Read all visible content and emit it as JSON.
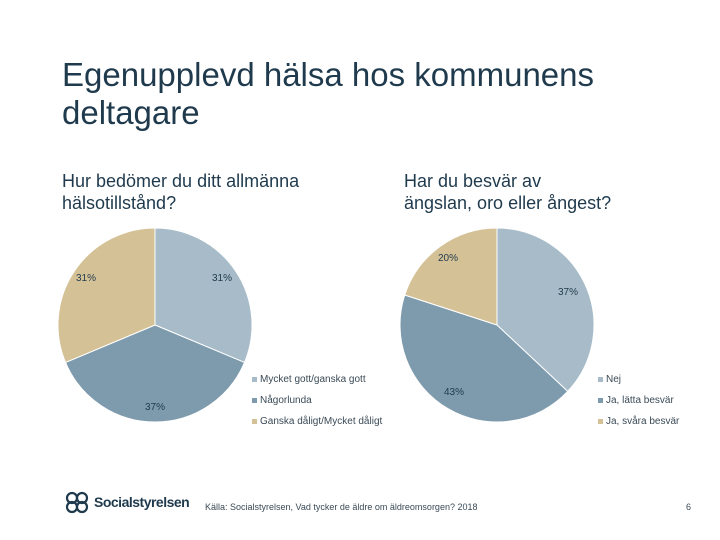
{
  "slide": {
    "title_lines": [
      "Egenupplevd hälsa hos kommunens",
      "deltagare"
    ],
    "source": "Källa: Socialstyrelsen, Vad tycker de äldre om äldreomsorgen? 2018",
    "page_number": "6",
    "logo_text": "Socialstyrelsen"
  },
  "chart_data": [
    {
      "type": "pie",
      "title_lines": [
        "Hur bedömer du ditt allmänna",
        "hälsotillstånd?"
      ],
      "categories": [
        "Mycket gott/ganska gott",
        "Någorlunda",
        "Ganska dåligt/Mycket dåligt"
      ],
      "values": [
        31,
        37,
        31
      ],
      "labels": [
        "31%",
        "37%",
        "31%"
      ],
      "colors": [
        "#a7bcc8",
        "#7e9aad",
        "#d4c196"
      ],
      "legend_position": "right"
    },
    {
      "type": "pie",
      "title_lines": [
        "Har du besvär av",
        "ängslan, oro eller ångest?"
      ],
      "categories": [
        "Nej",
        "Ja, lätta besvär",
        "Ja, svåra besvär"
      ],
      "values": [
        37,
        43,
        20
      ],
      "labels": [
        "37%",
        "43%",
        "20%"
      ],
      "colors": [
        "#a7bcc8",
        "#7e9aad",
        "#d4c196"
      ],
      "legend_position": "right"
    }
  ]
}
